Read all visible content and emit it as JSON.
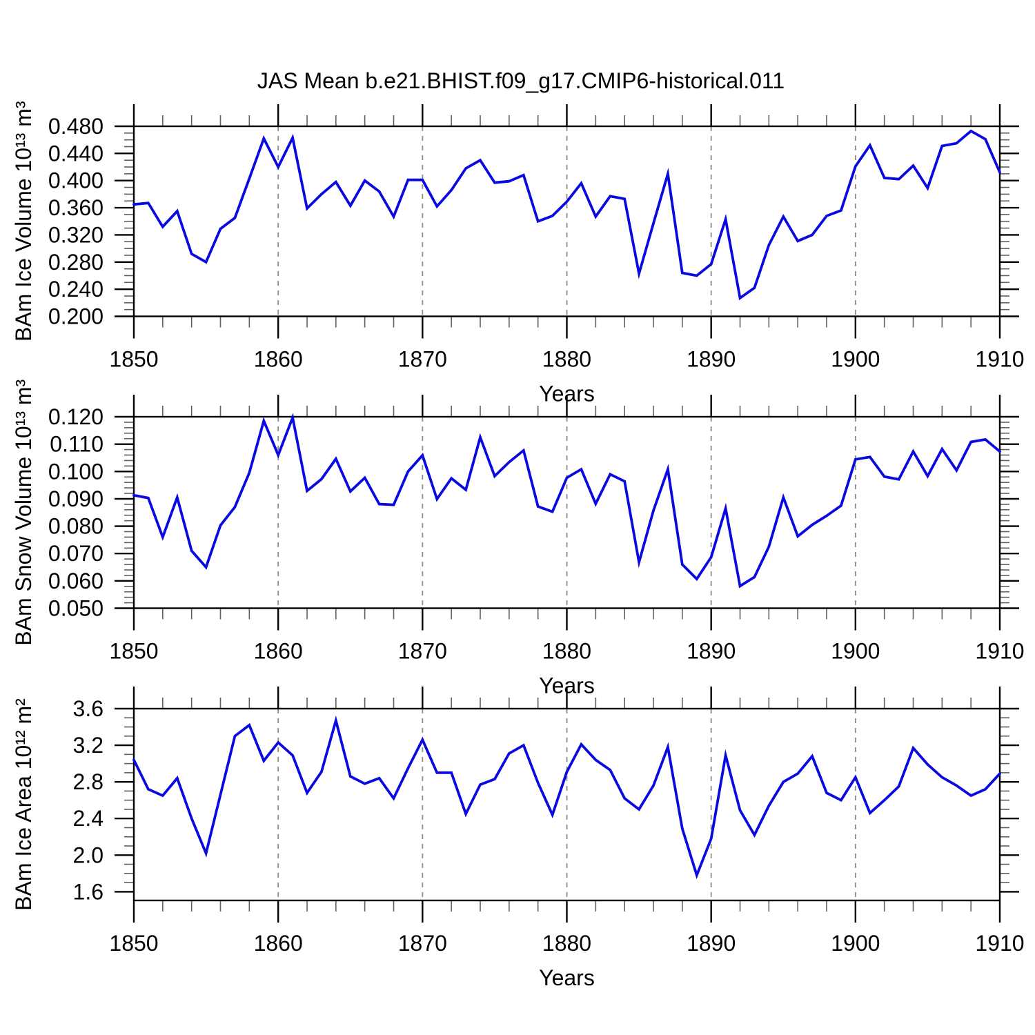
{
  "title": "JAS Mean b.e21.BHIST.f09_g17.CMIP6-historical.011",
  "chart_data": {
    "type": "line",
    "x_label": "Years",
    "x": [
      1850,
      1851,
      1852,
      1853,
      1854,
      1855,
      1856,
      1857,
      1858,
      1859,
      1860,
      1861,
      1862,
      1863,
      1864,
      1865,
      1866,
      1867,
      1868,
      1869,
      1870,
      1871,
      1872,
      1873,
      1874,
      1875,
      1876,
      1877,
      1878,
      1879,
      1880,
      1881,
      1882,
      1883,
      1884,
      1885,
      1886,
      1887,
      1888,
      1889,
      1890,
      1891,
      1892,
      1893,
      1894,
      1895,
      1896,
      1897,
      1898,
      1899,
      1900,
      1901,
      1902,
      1903,
      1904,
      1905,
      1906,
      1907,
      1908,
      1909,
      1910
    ],
    "xlim": [
      1850,
      1910
    ],
    "xticks": {
      "major": [
        1850,
        1860,
        1870,
        1880,
        1890,
        1900,
        1910
      ],
      "labels": [
        "1850",
        "1860",
        "1870",
        "1880",
        "1890",
        "1900",
        "1910"
      ],
      "minor_step": 2
    },
    "grid_x": [
      1860,
      1870,
      1880,
      1890,
      1900
    ],
    "style": {
      "background": "#ffffff",
      "line_color": "#0a0ae0",
      "grid_color": "#8c8c8c",
      "frame_color": "#000000",
      "minor_tick_color": "#5f5f5f"
    },
    "panels": [
      {
        "name": "ice-volume",
        "ylabel": "BAm Ice Volume 10¹³ m³",
        "ylim": [
          0.2,
          0.48
        ],
        "yticks": {
          "values": [
            0.2,
            0.24,
            0.28,
            0.32,
            0.36,
            0.4,
            0.44,
            0.48
          ],
          "labels": [
            "0.200",
            "0.240",
            "0.280",
            "0.320",
            "0.360",
            "0.400",
            "0.440",
            "0.480"
          ],
          "major_step": 0.04,
          "minor_step": 0.01
        },
        "values": [
          0.365,
          0.367,
          0.332,
          0.355,
          0.292,
          0.28,
          0.329,
          0.345,
          0.403,
          0.462,
          0.42,
          0.463,
          0.359,
          0.38,
          0.398,
          0.363,
          0.4,
          0.384,
          0.347,
          0.401,
          0.401,
          0.362,
          0.386,
          0.418,
          0.43,
          0.397,
          0.399,
          0.408,
          0.34,
          0.348,
          0.369,
          0.396,
          0.347,
          0.377,
          0.373,
          0.263,
          0.337,
          0.41,
          0.264,
          0.26,
          0.277,
          0.343,
          0.227,
          0.242,
          0.305,
          0.347,
          0.311,
          0.32,
          0.348,
          0.356,
          0.421,
          0.452,
          0.404,
          0.402,
          0.422,
          0.389,
          0.451,
          0.455,
          0.473,
          0.461,
          0.412
        ]
      },
      {
        "name": "snow-volume",
        "ylabel": "BAm Snow Volume 10¹³ m³",
        "ylim": [
          0.05,
          0.12
        ],
        "yticks": {
          "values": [
            0.05,
            0.06,
            0.07,
            0.08,
            0.09,
            0.1,
            0.11,
            0.12
          ],
          "labels": [
            "0.050",
            "0.060",
            "0.070",
            "0.080",
            "0.090",
            "0.100",
            "0.110",
            "0.120"
          ],
          "major_step": 0.01,
          "minor_step": 0.002
        },
        "values": [
          0.0913,
          0.0903,
          0.076,
          0.0905,
          0.071,
          0.065,
          0.0803,
          0.087,
          0.0995,
          0.1185,
          0.106,
          0.1197,
          0.0929,
          0.0972,
          0.1046,
          0.0927,
          0.0977,
          0.0881,
          0.0878,
          0.1,
          0.1059,
          0.0899,
          0.0975,
          0.0933,
          0.1125,
          0.0983,
          0.1034,
          0.1077,
          0.0872,
          0.0853,
          0.0977,
          0.1008,
          0.0882,
          0.099,
          0.0964,
          0.0668,
          0.0857,
          0.1008,
          0.066,
          0.0607,
          0.0687,
          0.0865,
          0.0581,
          0.0614,
          0.0725,
          0.0905,
          0.0763,
          0.0805,
          0.0838,
          0.0875,
          0.1044,
          0.1053,
          0.0981,
          0.0971,
          0.1073,
          0.0983,
          0.1082,
          0.1004,
          0.1108,
          0.1117,
          0.1073
        ]
      },
      {
        "name": "ice-area",
        "ylabel": "BAm Ice Area 10¹² m²",
        "ylim": [
          1.505,
          3.6
        ],
        "yticks": {
          "values": [
            1.6,
            2.0,
            2.4,
            2.8,
            3.2,
            3.6
          ],
          "labels": [
            "1.6",
            "2.0",
            "2.4",
            "2.8",
            "3.2",
            "3.6"
          ],
          "major_step": 0.4,
          "minor_step": 0.1
        },
        "values": [
          3.04,
          2.72,
          2.65,
          2.84,
          2.4,
          2.02,
          2.66,
          3.3,
          3.42,
          3.03,
          3.23,
          3.09,
          2.68,
          2.91,
          3.47,
          2.86,
          2.78,
          2.84,
          2.62,
          2.95,
          3.26,
          2.9,
          2.9,
          2.45,
          2.77,
          2.83,
          3.11,
          3.2,
          2.79,
          2.44,
          2.91,
          3.21,
          3.04,
          2.93,
          2.62,
          2.5,
          2.76,
          3.18,
          2.29,
          1.78,
          2.18,
          3.09,
          2.49,
          2.22,
          2.54,
          2.8,
          2.89,
          3.08,
          2.68,
          2.6,
          2.85,
          2.46,
          2.6,
          2.75,
          3.17,
          2.99,
          2.85,
          2.76,
          2.65,
          2.72,
          2.89
        ]
      }
    ]
  }
}
